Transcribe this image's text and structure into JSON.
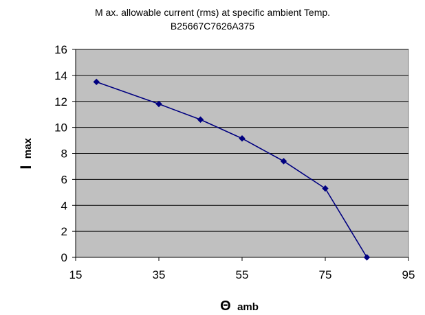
{
  "chart_data": {
    "type": "line",
    "title": "M ax. allowable current (rms) at specific ambient Temp.",
    "subtitle": "B25667C7626A375",
    "xlabel": {
      "symbol": "Θ",
      "subscript": "amb"
    },
    "ylabel": {
      "symbol": "I",
      "subscript": "max"
    },
    "xlim": [
      15,
      95
    ],
    "ylim": [
      0,
      16
    ],
    "x_ticks": [
      15,
      35,
      55,
      75,
      95
    ],
    "y_ticks": [
      0,
      2,
      4,
      6,
      8,
      10,
      12,
      14,
      16
    ],
    "grid": {
      "horizontal": true,
      "vertical": false
    },
    "legend": "none",
    "plot_background": "#c0c0c0",
    "series": [
      {
        "color": "#000080",
        "marker": "diamond",
        "points": [
          {
            "x": 20,
            "y": 13.5
          },
          {
            "x": 35,
            "y": 11.8
          },
          {
            "x": 45,
            "y": 10.6
          },
          {
            "x": 55,
            "y": 9.15
          },
          {
            "x": 65,
            "y": 7.4
          },
          {
            "x": 75,
            "y": 5.3
          },
          {
            "x": 85,
            "y": 0
          }
        ]
      }
    ]
  }
}
